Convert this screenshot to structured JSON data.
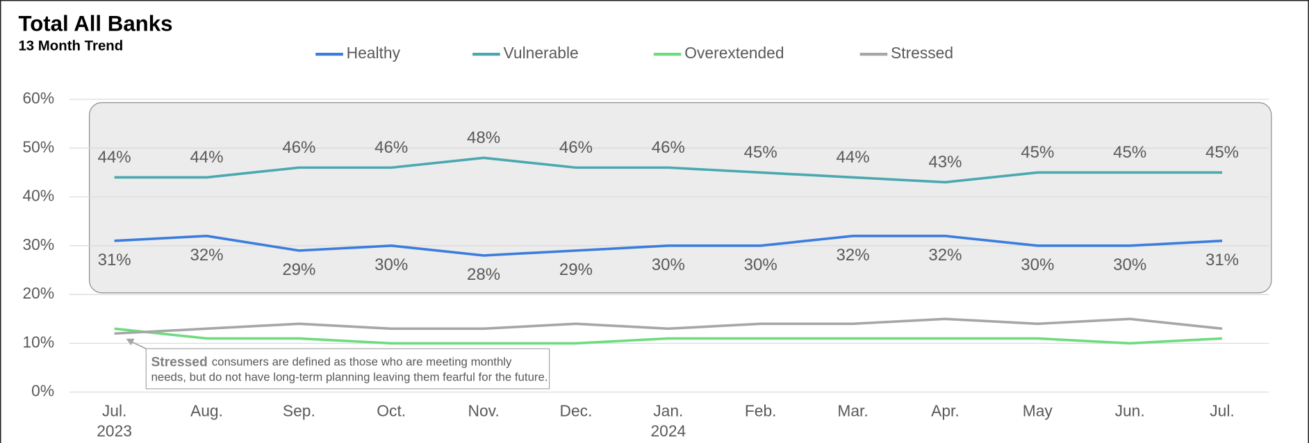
{
  "chart_data": {
    "type": "line",
    "title": "Total All Banks",
    "subtitle": "13 Month Trend",
    "categories": [
      "Jul.\n2023",
      "Aug.",
      "Sep.",
      "Oct.",
      "Nov.",
      "Dec.",
      "Jan.\n2024",
      "Feb.",
      "Mar.",
      "Apr.",
      "May",
      "Jun.",
      "Jul."
    ],
    "series": [
      {
        "name": "Healthy",
        "color": "#3b7ddd",
        "values": [
          31,
          32,
          29,
          30,
          28,
          29,
          30,
          30,
          32,
          32,
          30,
          30,
          31
        ],
        "value_labels": [
          "31%",
          "32%",
          "29%",
          "30%",
          "28%",
          "29%",
          "30%",
          "30%",
          "32%",
          "32%",
          "30%",
          "30%",
          "31%"
        ],
        "label_position": "below"
      },
      {
        "name": "Vulnerable",
        "color": "#4aa8b0",
        "values": [
          44,
          44,
          46,
          46,
          48,
          46,
          46,
          45,
          44,
          43,
          45,
          45,
          45
        ],
        "value_labels": [
          "44%",
          "44%",
          "46%",
          "46%",
          "48%",
          "46%",
          "46%",
          "45%",
          "44%",
          "43%",
          "45%",
          "45%",
          "45%"
        ],
        "label_position": "above"
      },
      {
        "name": "Overextended",
        "color": "#6ddc7f",
        "values": [
          13,
          11,
          11,
          10,
          10,
          10,
          11,
          11,
          11,
          11,
          11,
          10,
          11
        ]
      },
      {
        "name": "Stressed",
        "color": "#a6a6a6",
        "values": [
          12,
          13,
          14,
          13,
          13,
          14,
          13,
          14,
          14,
          15,
          14,
          15,
          13
        ]
      }
    ],
    "ylim": [
      0,
      60
    ],
    "yticks": [
      {
        "value": 0,
        "label": "0%"
      },
      {
        "value": 10,
        "label": "10%"
      },
      {
        "value": 20,
        "label": "20%"
      },
      {
        "value": 30,
        "label": "30%"
      },
      {
        "value": 40,
        "label": "40%"
      },
      {
        "value": 50,
        "label": "50%"
      },
      {
        "value": 60,
        "label": "60%"
      }
    ],
    "grid": true,
    "legend": "top",
    "annotation": {
      "bold": "Stressed",
      "lines": [
        "consumers are defined as those who are meeting monthly",
        "needs, but do not have long-term planning leaving them fearful for the future."
      ]
    }
  }
}
